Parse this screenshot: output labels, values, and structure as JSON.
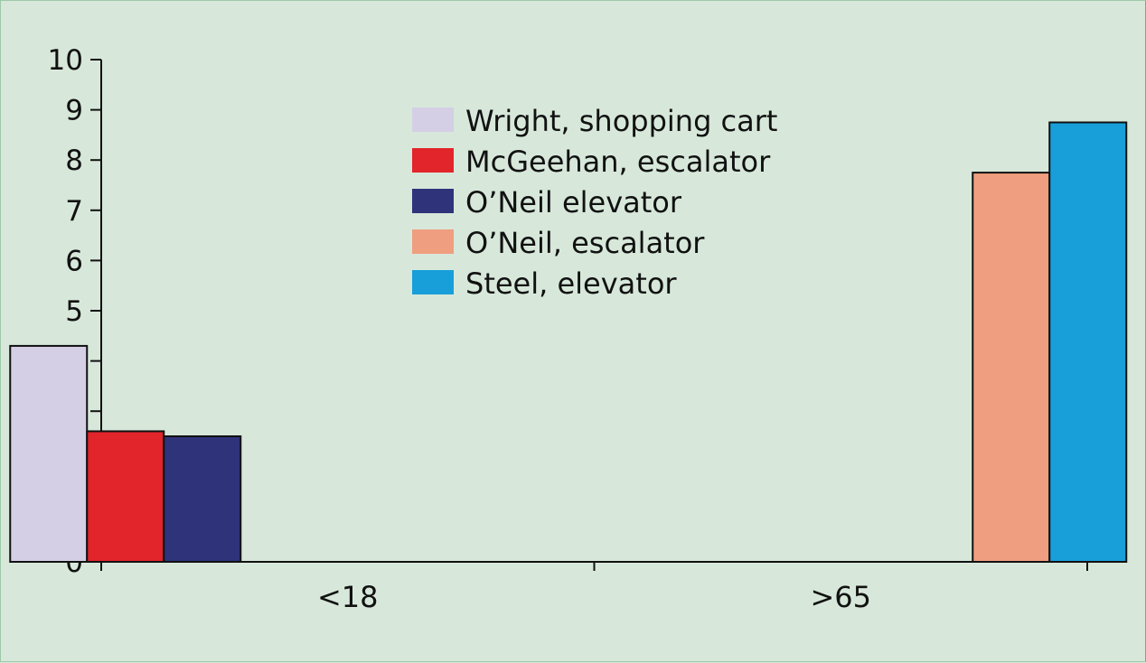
{
  "chart_data": {
    "type": "bar",
    "categories": [
      "<18",
      ">65"
    ],
    "ylim": [
      0,
      10
    ],
    "yticks": [
      0,
      1,
      2,
      3,
      4,
      5,
      6,
      7,
      8,
      9,
      10
    ],
    "grid": false,
    "legend_position": "top-center",
    "series": [
      {
        "name": "Wright, shopping cart",
        "color": "#d4cfe5",
        "values": [
          4.3,
          null
        ]
      },
      {
        "name": "McGeehan, escalator",
        "color": "#e2242b",
        "values": [
          2.6,
          null
        ]
      },
      {
        "name": "O’Neil elevator",
        "color": "#2e337a",
        "values": [
          2.5,
          null
        ]
      },
      {
        "name": "O’Neil, escalator",
        "color": "#f09e80",
        "values": [
          null,
          7.75
        ]
      },
      {
        "name": "Steel, elevator",
        "color": "#189fda",
        "values": [
          null,
          8.75
        ]
      }
    ]
  }
}
